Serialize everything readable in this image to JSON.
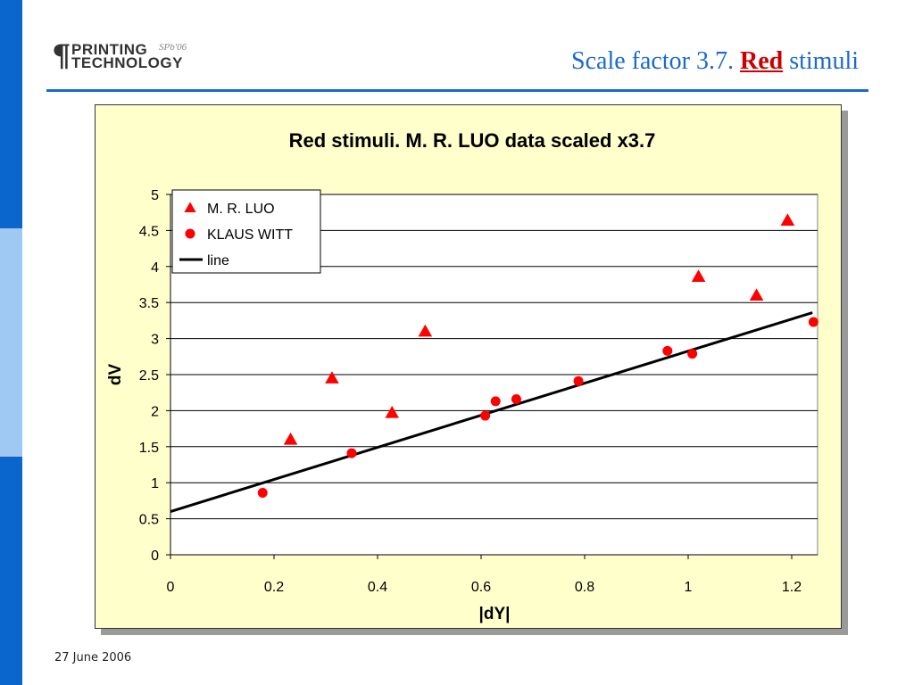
{
  "header": {
    "logo_line1": "PRINTING",
    "logo_line2": "TECHNOLOGY",
    "logo_tag": "SPb'06",
    "title_before": "Scale factor 3.7.",
    "title_accent": "Red",
    "title_after": "stimuli"
  },
  "footer": {
    "date": "27 June 2006"
  },
  "colors": {
    "accent": "#1b6ac9",
    "title_accent": "#cc0000",
    "sidebar": "#0a66cc",
    "sidebar_light": "#9fc8f2",
    "chart_bg": "#ffffcc",
    "series_marker": "#ff0000"
  },
  "chart_data": {
    "type": "scatter",
    "title": "Red stimuli. M. R. LUO data scaled x3.7",
    "xlabel": "|dY|",
    "ylabel": "dV",
    "xlim": [
      0,
      1.25
    ],
    "ylim": [
      0,
      5
    ],
    "xticks": [
      "0",
      "0.2",
      "0.4",
      "0.6",
      "0.8",
      "1",
      "1.2"
    ],
    "yticks": [
      "0",
      "0.5",
      "1",
      "1.5",
      "2",
      "2.5",
      "3",
      "3.5",
      "4",
      "4.5",
      "5"
    ],
    "grid": true,
    "legend_position": "top-left",
    "series": [
      {
        "name": "M. R. LUO",
        "marker": "triangle",
        "color": "#ff0000",
        "x": [
          0.232,
          0.312,
          0.428,
          0.492,
          1.02,
          1.132,
          1.192
        ],
        "y": [
          1.6,
          2.45,
          1.97,
          3.1,
          3.86,
          3.6,
          4.64
        ]
      },
      {
        "name": "KLAUS WITT",
        "marker": "circle",
        "color": "#ff0000",
        "x": [
          0.178,
          0.35,
          0.608,
          0.628,
          0.668,
          0.788,
          0.96,
          1.008,
          1.242
        ],
        "y": [
          0.86,
          1.41,
          1.93,
          2.13,
          2.16,
          2.41,
          2.83,
          2.79,
          3.23
        ]
      },
      {
        "name": "line",
        "type": "line",
        "color": "#000000",
        "x": [
          0,
          1.24
        ],
        "y": [
          0.6,
          3.36
        ]
      }
    ]
  }
}
